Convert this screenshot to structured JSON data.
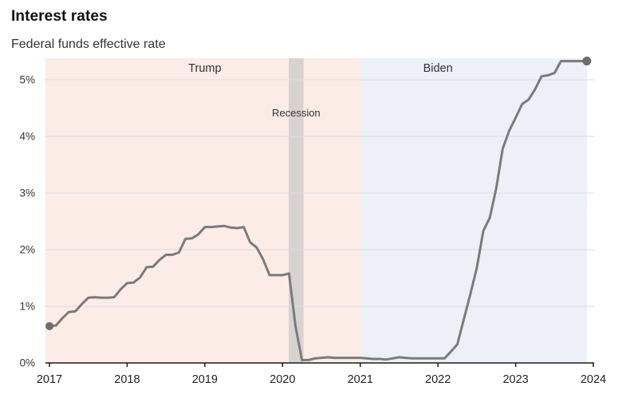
{
  "header": {
    "title": "Interest rates",
    "subtitle": "Federal funds effective rate"
  },
  "chart_data": {
    "type": "line",
    "title": "Interest rates",
    "subtitle": "Federal funds effective rate",
    "frequency": "monthly",
    "start": "2017-01",
    "x_start_year": 2017,
    "xlim": [
      2017,
      2024
    ],
    "xticks": [
      2017,
      2018,
      2019,
      2020,
      2021,
      2022,
      2023,
      2024
    ],
    "xtick_labels": [
      "2017",
      "2018",
      "2019",
      "2020",
      "2021",
      "2022",
      "2023",
      "2024"
    ],
    "ylim": [
      0,
      5.38
    ],
    "yticks": [
      0,
      1,
      2,
      3,
      4,
      5
    ],
    "ytick_labels": [
      "0%",
      "1%",
      "2%",
      "3%",
      "4%",
      "5%"
    ],
    "grid": true,
    "legend": "none",
    "line_color": "#7b7b7b",
    "dot_color": "#6e6e6e",
    "axis_color": "#1a1a1a",
    "grid_color": "#dddddd",
    "label_color": "#333333",
    "regions": [
      {
        "label": "Trump",
        "start": 2017,
        "end": 2021,
        "color": "#fbece6",
        "label_x": 2019,
        "from_plot_left": true
      },
      {
        "label": "Biden",
        "start": 2021,
        "end": 2023.92,
        "color": "#edf0f7",
        "label_x": 2022
      }
    ],
    "recession_band": {
      "label": "Recession",
      "start": 2020.08,
      "end": 2020.27,
      "color": "#d7d3d1",
      "label_y": 4.35
    },
    "endpoint_markers": true,
    "series": [
      {
        "name": "Federal funds effective rate",
        "values": [
          0.65,
          0.66,
          0.79,
          0.9,
          0.91,
          1.04,
          1.15,
          1.16,
          1.15,
          1.15,
          1.16,
          1.3,
          1.41,
          1.42,
          1.51,
          1.69,
          1.7,
          1.82,
          1.91,
          1.91,
          1.95,
          2.19,
          2.2,
          2.27,
          2.4,
          2.4,
          2.41,
          2.42,
          2.39,
          2.38,
          2.4,
          2.13,
          2.04,
          1.83,
          1.55,
          1.55,
          1.55,
          1.58,
          0.65,
          0.05,
          0.05,
          0.08,
          0.09,
          0.1,
          0.09,
          0.09,
          0.09,
          0.09,
          0.09,
          0.08,
          0.07,
          0.07,
          0.06,
          0.08,
          0.1,
          0.09,
          0.08,
          0.08,
          0.08,
          0.08,
          0.08,
          0.08,
          0.2,
          0.33,
          0.77,
          1.21,
          1.68,
          2.33,
          2.56,
          3.08,
          3.78,
          4.1,
          4.33,
          4.57,
          4.65,
          4.83,
          5.06,
          5.08,
          5.12,
          5.33,
          5.33,
          5.33,
          5.33,
          5.33
        ]
      }
    ]
  }
}
